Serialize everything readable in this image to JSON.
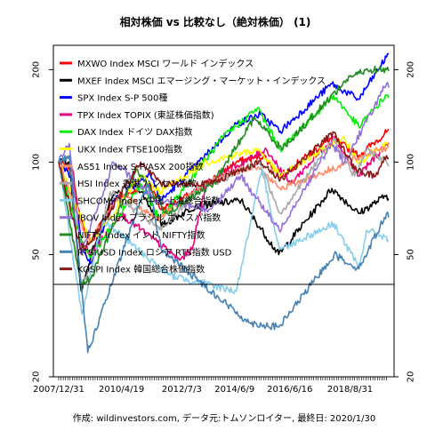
{
  "chart_data": {
    "type": "line",
    "title": "相対株価 vs 比較なし（絶対株価） (1)",
    "caption": "作成: wildinvestors.com, データ元:トムソンロイター, 最終日: 2020/1/30",
    "y_scale": "log",
    "ylim": [
      20,
      240
    ],
    "y_ticks": [
      20,
      50,
      100,
      200
    ],
    "reference_line": 40,
    "x_range": [
      "2007-12-31",
      "2020-01-30"
    ],
    "x_tick_labels": [
      "2007/12/31",
      "2010/4/19",
      "2012/7/3",
      "2014/6/9",
      "2016/6/16",
      "2018/8/31"
    ],
    "legend_position": "top-left",
    "series": [
      {
        "name": "MXWO Index MSCI ワールド インデックス",
        "color": "#ff0000",
        "points": [
          [
            "2007-12-31",
            100
          ],
          [
            "2008-06-30",
            95
          ],
          [
            "2008-10-15",
            65
          ],
          [
            "2009-03-09",
            55
          ],
          [
            "2009-12-31",
            75
          ],
          [
            "2011-05-01",
            85
          ],
          [
            "2011-10-01",
            70
          ],
          [
            "2012-12-31",
            80
          ],
          [
            "2014-06-30",
            100
          ],
          [
            "2015-06-30",
            105
          ],
          [
            "2016-02-11",
            90
          ],
          [
            "2017-12-31",
            120
          ],
          [
            "2018-12-24",
            105
          ],
          [
            "2019-12-31",
            125
          ],
          [
            "2020-01-30",
            128
          ]
        ]
      },
      {
        "name": "MXEF Index MSCI エマージング・マーケット・インデックス",
        "color": "#000000",
        "points": [
          [
            "2007-12-31",
            100
          ],
          [
            "2008-05-19",
            100
          ],
          [
            "2008-10-27",
            38
          ],
          [
            "2009-03-09",
            50
          ],
          [
            "2009-12-31",
            78
          ],
          [
            "2010-11-05",
            85
          ],
          [
            "2011-10-04",
            62
          ],
          [
            "2012-12-31",
            72
          ],
          [
            "2014-09-05",
            75
          ],
          [
            "2016-01-21",
            50
          ],
          [
            "2017-12-31",
            82
          ],
          [
            "2018-12-24",
            68
          ],
          [
            "2019-12-31",
            78
          ],
          [
            "2020-01-30",
            76
          ]
        ]
      },
      {
        "name": "SPX Index S-P 500種",
        "color": "#0000ff",
        "points": [
          [
            "2007-12-31",
            100
          ],
          [
            "2008-06-30",
            88
          ],
          [
            "2008-11-20",
            52
          ],
          [
            "2009-03-09",
            47
          ],
          [
            "2009-12-31",
            75
          ],
          [
            "2011-04-29",
            92
          ],
          [
            "2011-10-03",
            75
          ],
          [
            "2012-12-31",
            97
          ],
          [
            "2014-06-30",
            133
          ],
          [
            "2015-05-21",
            143
          ],
          [
            "2016-02-11",
            126
          ],
          [
            "2017-12-31",
            180
          ],
          [
            "2018-12-24",
            160
          ],
          [
            "2019-12-31",
            220
          ],
          [
            "2020-01-30",
            225
          ]
        ]
      },
      {
        "name": "TPX Index TOPIX (東証株価指数)",
        "color": "#e6007e",
        "points": [
          [
            "2007-12-31",
            100
          ],
          [
            "2008-10-27",
            55
          ],
          [
            "2009-03-10",
            50
          ],
          [
            "2010-04-05",
            68
          ],
          [
            "2012-06-04",
            48
          ],
          [
            "2012-11-15",
            52
          ],
          [
            "2013-05-22",
            85
          ],
          [
            "2015-08-10",
            110
          ],
          [
            "2016-06-24",
            85
          ],
          [
            "2018-01-23",
            120
          ],
          [
            "2018-12-25",
            90
          ],
          [
            "2019-12-31",
            115
          ],
          [
            "2020-01-30",
            112
          ]
        ]
      },
      {
        "name": "DAX Index ドイツ DAX指数",
        "color": "#00ee00",
        "points": [
          [
            "2007-12-31",
            100
          ],
          [
            "2008-10-24",
            55
          ],
          [
            "2009-03-06",
            49
          ],
          [
            "2010-12-31",
            85
          ],
          [
            "2011-09-12",
            65
          ],
          [
            "2013-12-31",
            120
          ],
          [
            "2015-04-10",
            150
          ],
          [
            "2016-02-11",
            110
          ],
          [
            "2018-01-23",
            165
          ],
          [
            "2018-12-27",
            130
          ],
          [
            "2019-12-31",
            165
          ],
          [
            "2020-01-30",
            162
          ]
        ]
      },
      {
        "name": "UKX Index FTSE100指数",
        "color": "#ffff00",
        "points": [
          [
            "2007-12-31",
            100
          ],
          [
            "2008-10-27",
            65
          ],
          [
            "2009-03-03",
            55
          ],
          [
            "2010-12-31",
            90
          ],
          [
            "2011-09-22",
            80
          ],
          [
            "2013-05-22",
            100
          ],
          [
            "2015-04-27",
            110
          ],
          [
            "2016-02-11",
            90
          ],
          [
            "2018-05-22",
            120
          ],
          [
            "2018-12-27",
            100
          ],
          [
            "2019-12-31",
            115
          ],
          [
            "2020-01-30",
            112
          ]
        ]
      },
      {
        "name": "AS51 Index S-P/ASX 200指数",
        "color": "#ff8c69",
        "points": [
          [
            "2007-12-31",
            100
          ],
          [
            "2008-11-20",
            60
          ],
          [
            "2009-03-06",
            55
          ],
          [
            "2010-04-15",
            80
          ],
          [
            "2011-08-09",
            65
          ],
          [
            "2013-05-14",
            85
          ],
          [
            "2015-03-02",
            98
          ],
          [
            "2016-02-09",
            82
          ],
          [
            "2018-08-29",
            100
          ],
          [
            "2019-07-30",
            110
          ],
          [
            "2019-12-31",
            111
          ],
          [
            "2020-01-30",
            116
          ]
        ]
      },
      {
        "name": "HSI Index 香港 ハンセン指数",
        "color": "#a9a9a9",
        "points": [
          [
            "2007-12-31",
            100
          ],
          [
            "2008-10-27",
            40
          ],
          [
            "2009-03-09",
            45
          ],
          [
            "2009-11-17",
            80
          ],
          [
            "2011-10-04",
            60
          ],
          [
            "2012-12-31",
            80
          ],
          [
            "2015-04-27",
            100
          ],
          [
            "2016-02-12",
            68
          ],
          [
            "2018-01-26",
            120
          ],
          [
            "2018-10-30",
            90
          ],
          [
            "2019-04-15",
            110
          ],
          [
            "2019-12-31",
            100
          ],
          [
            "2020-01-30",
            97
          ]
        ]
      },
      {
        "name": "SHCOMP Index 中国 上海総合指数",
        "color": "#87ceeb",
        "points": [
          [
            "2007-12-31",
            100
          ],
          [
            "2008-11-04",
            32
          ],
          [
            "2009-08-04",
            65
          ],
          [
            "2011-12-31",
            43
          ],
          [
            "2014-06-30",
            38
          ],
          [
            "2015-06-12",
            95
          ],
          [
            "2016-01-28",
            52
          ],
          [
            "2018-01-29",
            63
          ],
          [
            "2018-12-31",
            45
          ],
          [
            "2019-04-08",
            60
          ],
          [
            "2019-12-31",
            57
          ],
          [
            "2020-01-23",
            56
          ]
        ]
      },
      {
        "name": "IBOV Index ブラジル ボベスパ指数",
        "color": "#9370db",
        "points": [
          [
            "2007-12-31",
            100
          ],
          [
            "2008-05-20",
            115
          ],
          [
            "2008-10-27",
            50
          ],
          [
            "2009-12-31",
            100
          ],
          [
            "2011-08-08",
            75
          ],
          [
            "2013-06-30",
            70
          ],
          [
            "2014-09-02",
            90
          ],
          [
            "2016-01-26",
            60
          ],
          [
            "2017-12-31",
            115
          ],
          [
            "2018-06-18",
            100
          ],
          [
            "2019-12-31",
            180
          ],
          [
            "2020-01-30",
            175
          ]
        ]
      },
      {
        "name": "NIFTY Index インド NIFTY指数",
        "color": "#228b22",
        "points": [
          [
            "2007-12-31",
            100
          ],
          [
            "2008-10-27",
            40
          ],
          [
            "2009-03-09",
            42
          ],
          [
            "2010-11-05",
            95
          ],
          [
            "2011-12-20",
            68
          ],
          [
            "2013-08-28",
            85
          ],
          [
            "2015-03-03",
            140
          ],
          [
            "2016-02-29",
            110
          ],
          [
            "2018-08-28",
            190
          ],
          [
            "2019-06-03",
            200
          ],
          [
            "2019-12-31",
            200
          ],
          [
            "2020-01-30",
            198
          ]
        ]
      },
      {
        "name": "RTSIUSD Index ロシア RTS指数 USD",
        "color": "#4682b4",
        "points": [
          [
            "2007-12-31",
            100
          ],
          [
            "2008-05-19",
            105
          ],
          [
            "2009-01-23",
            24
          ],
          [
            "2010-12-31",
            75
          ],
          [
            "2011-04-08",
            85
          ],
          [
            "2011-10-04",
            52
          ],
          [
            "2014-12-16",
            30
          ],
          [
            "2016-01-20",
            29
          ],
          [
            "2018-01-30",
            50
          ],
          [
            "2018-12-25",
            45
          ],
          [
            "2019-12-31",
            68
          ],
          [
            "2020-01-30",
            66
          ]
        ]
      },
      {
        "name": "KOSPI Index 韓国総合株価指数",
        "color": "#8b1a1a",
        "points": [
          [
            "2007-12-31",
            100
          ],
          [
            "2008-10-24",
            52
          ],
          [
            "2009-03-02",
            55
          ],
          [
            "2010-12-31",
            100
          ],
          [
            "2011-09-26",
            85
          ],
          [
            "2013-06-30",
            85
          ],
          [
            "2015-04-23",
            100
          ],
          [
            "2016-02-12",
            88
          ],
          [
            "2018-01-29",
            125
          ],
          [
            "2018-10-29",
            95
          ],
          [
            "2019-08-06",
            90
          ],
          [
            "2019-12-31",
            105
          ],
          [
            "2020-01-30",
            103
          ]
        ]
      }
    ]
  }
}
